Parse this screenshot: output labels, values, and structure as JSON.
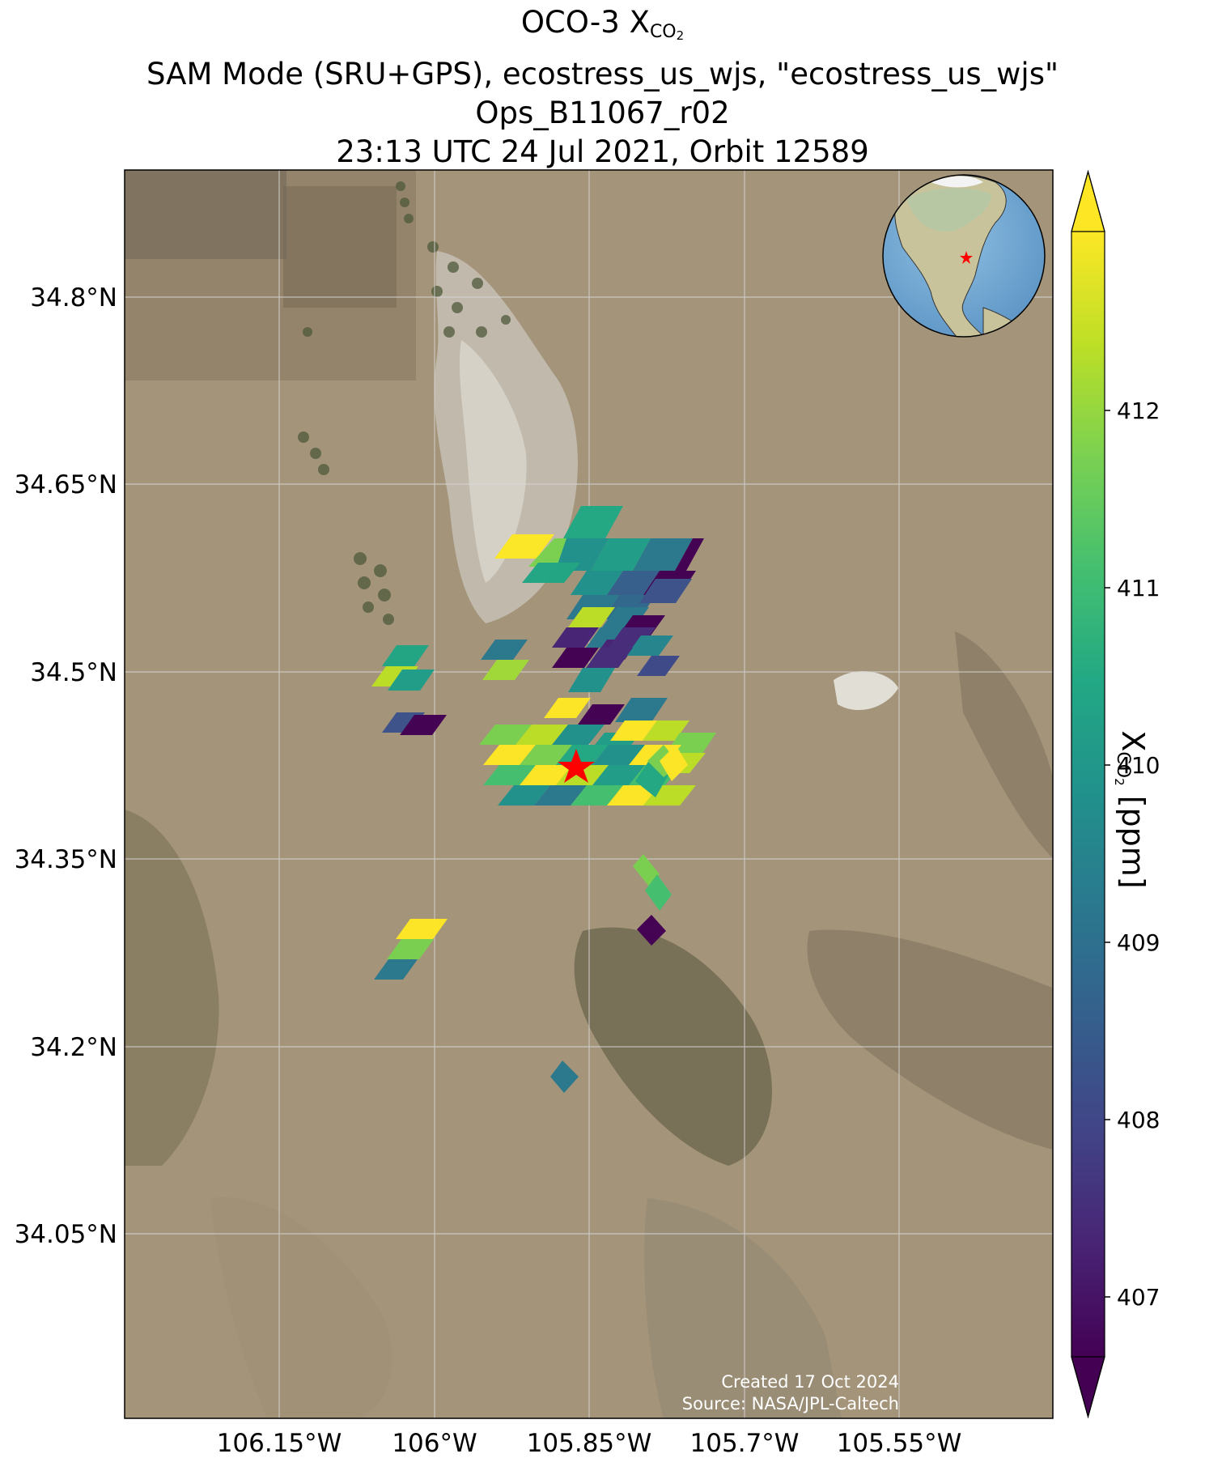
{
  "title": {
    "line1_prefix": "OCO-3 X",
    "line1_sub": "CO",
    "line1_sub2": "2",
    "line2": "SAM Mode (SRU+GPS), ecostress_us_wjs, \"ecostress_us_wjs\"",
    "line3": "Ops_B11067_r02",
    "line4": "23:13 UTC 24 Jul 2021, Orbit 12589"
  },
  "map": {
    "lat_ticks": [
      "34.8°N",
      "34.65°N",
      "34.5°N",
      "34.35°N",
      "34.2°N",
      "34.05°N"
    ],
    "lon_ticks": [
      "106.15°W",
      "106°W",
      "105.85°W",
      "105.7°W",
      "105.55°W"
    ],
    "target_marker": "red-star",
    "inset": "globe-inset-north-america"
  },
  "colorbar": {
    "ticks": [
      "407",
      "408",
      "409",
      "410",
      "411",
      "412"
    ],
    "label_prefix": "X",
    "label_sub": "CO",
    "label_sub2": "2",
    "label_suffix": " [ppm]",
    "colormap": "viridis"
  },
  "credits": {
    "created": "Created 17 Oct 2024",
    "source": "Source: NASA/JPL-Caltech"
  },
  "colors": {
    "viridis_low": "#440154",
    "viridis_mid": "#21918c",
    "viridis_high": "#fde725",
    "target_star": "#ff0000",
    "ocean": "#7aaed6"
  }
}
